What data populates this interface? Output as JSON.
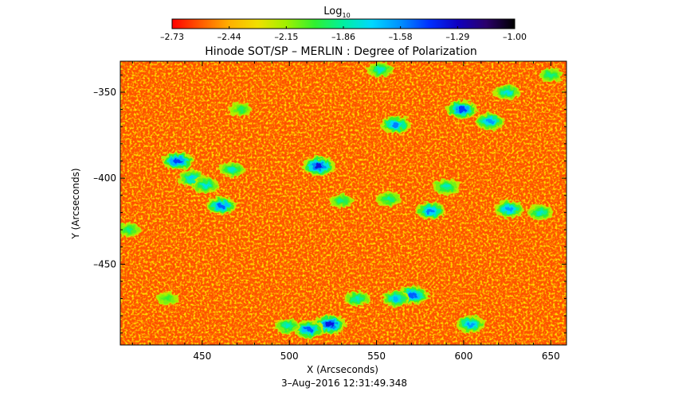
{
  "chart_data": {
    "type": "heatmap",
    "title": "Hinode SOT/SP – MERLIN : Degree of Polarization",
    "xlabel": "X (Arcseconds)",
    "ylabel": "Y (Arcseconds)",
    "footer": "3–Aug–2016 12:31:49.348",
    "xlim": [
      403,
      659
    ],
    "ylim": [
      -497,
      -332
    ],
    "x_ticks": [
      450,
      500,
      550,
      600,
      650
    ],
    "y_ticks": [
      -350,
      -400,
      -450
    ],
    "x_tick_labels": [
      "450",
      "500",
      "550",
      "600",
      "650"
    ],
    "y_tick_labels": [
      "–350",
      "–400",
      "–450"
    ],
    "colorbar": {
      "title": "Log",
      "title_sub": "10",
      "range": [
        -2.73,
        -1.0
      ],
      "tick_labels": [
        "–2.73",
        "–2.44",
        "–2.15",
        "–1.86",
        "–1.58",
        "–1.29",
        "–1.00"
      ],
      "colors": [
        "#ff0000",
        "#ff5a00",
        "#ffb000",
        "#f0e000",
        "#a0f000",
        "#30f030",
        "#00f0a0",
        "#00d8ff",
        "#0090ff",
        "#0030ff",
        "#1000c0",
        "#2a006a",
        "#000000"
      ]
    },
    "background_level": -2.6,
    "strong_regions": [
      {
        "x": 436,
        "y": -390,
        "peak": -1.45
      },
      {
        "x": 444,
        "y": -400,
        "peak": -1.7
      },
      {
        "x": 461,
        "y": -416,
        "peak": -1.5
      },
      {
        "x": 467,
        "y": -395,
        "peak": -1.8
      },
      {
        "x": 452,
        "y": -404,
        "peak": -1.75
      },
      {
        "x": 517,
        "y": -393,
        "peak": -1.35
      },
      {
        "x": 561,
        "y": -369,
        "peak": -1.55
      },
      {
        "x": 552,
        "y": -337,
        "peak": -1.8
      },
      {
        "x": 599,
        "y": -360,
        "peak": -1.45
      },
      {
        "x": 615,
        "y": -367,
        "peak": -1.6
      },
      {
        "x": 625,
        "y": -350,
        "peak": -1.75
      },
      {
        "x": 590,
        "y": -405,
        "peak": -1.8
      },
      {
        "x": 581,
        "y": -419,
        "peak": -1.55
      },
      {
        "x": 626,
        "y": -418,
        "peak": -1.6
      },
      {
        "x": 644,
        "y": -420,
        "peak": -1.8
      },
      {
        "x": 571,
        "y": -468,
        "peak": -1.5
      },
      {
        "x": 561,
        "y": -470,
        "peak": -1.65
      },
      {
        "x": 539,
        "y": -470,
        "peak": -1.8
      },
      {
        "x": 523,
        "y": -485,
        "peak": -1.35
      },
      {
        "x": 511,
        "y": -488,
        "peak": -1.5
      },
      {
        "x": 499,
        "y": -486,
        "peak": -1.8
      },
      {
        "x": 604,
        "y": -485,
        "peak": -1.6
      },
      {
        "x": 557,
        "y": -412,
        "peak": -1.85
      },
      {
        "x": 530,
        "y": -413,
        "peak": -1.9
      },
      {
        "x": 472,
        "y": -360,
        "peak": -1.95
      },
      {
        "x": 408,
        "y": -430,
        "peak": -1.9
      },
      {
        "x": 430,
        "y": -470,
        "peak": -2.0
      },
      {
        "x": 650,
        "y": -340,
        "peak": -1.9
      }
    ]
  }
}
